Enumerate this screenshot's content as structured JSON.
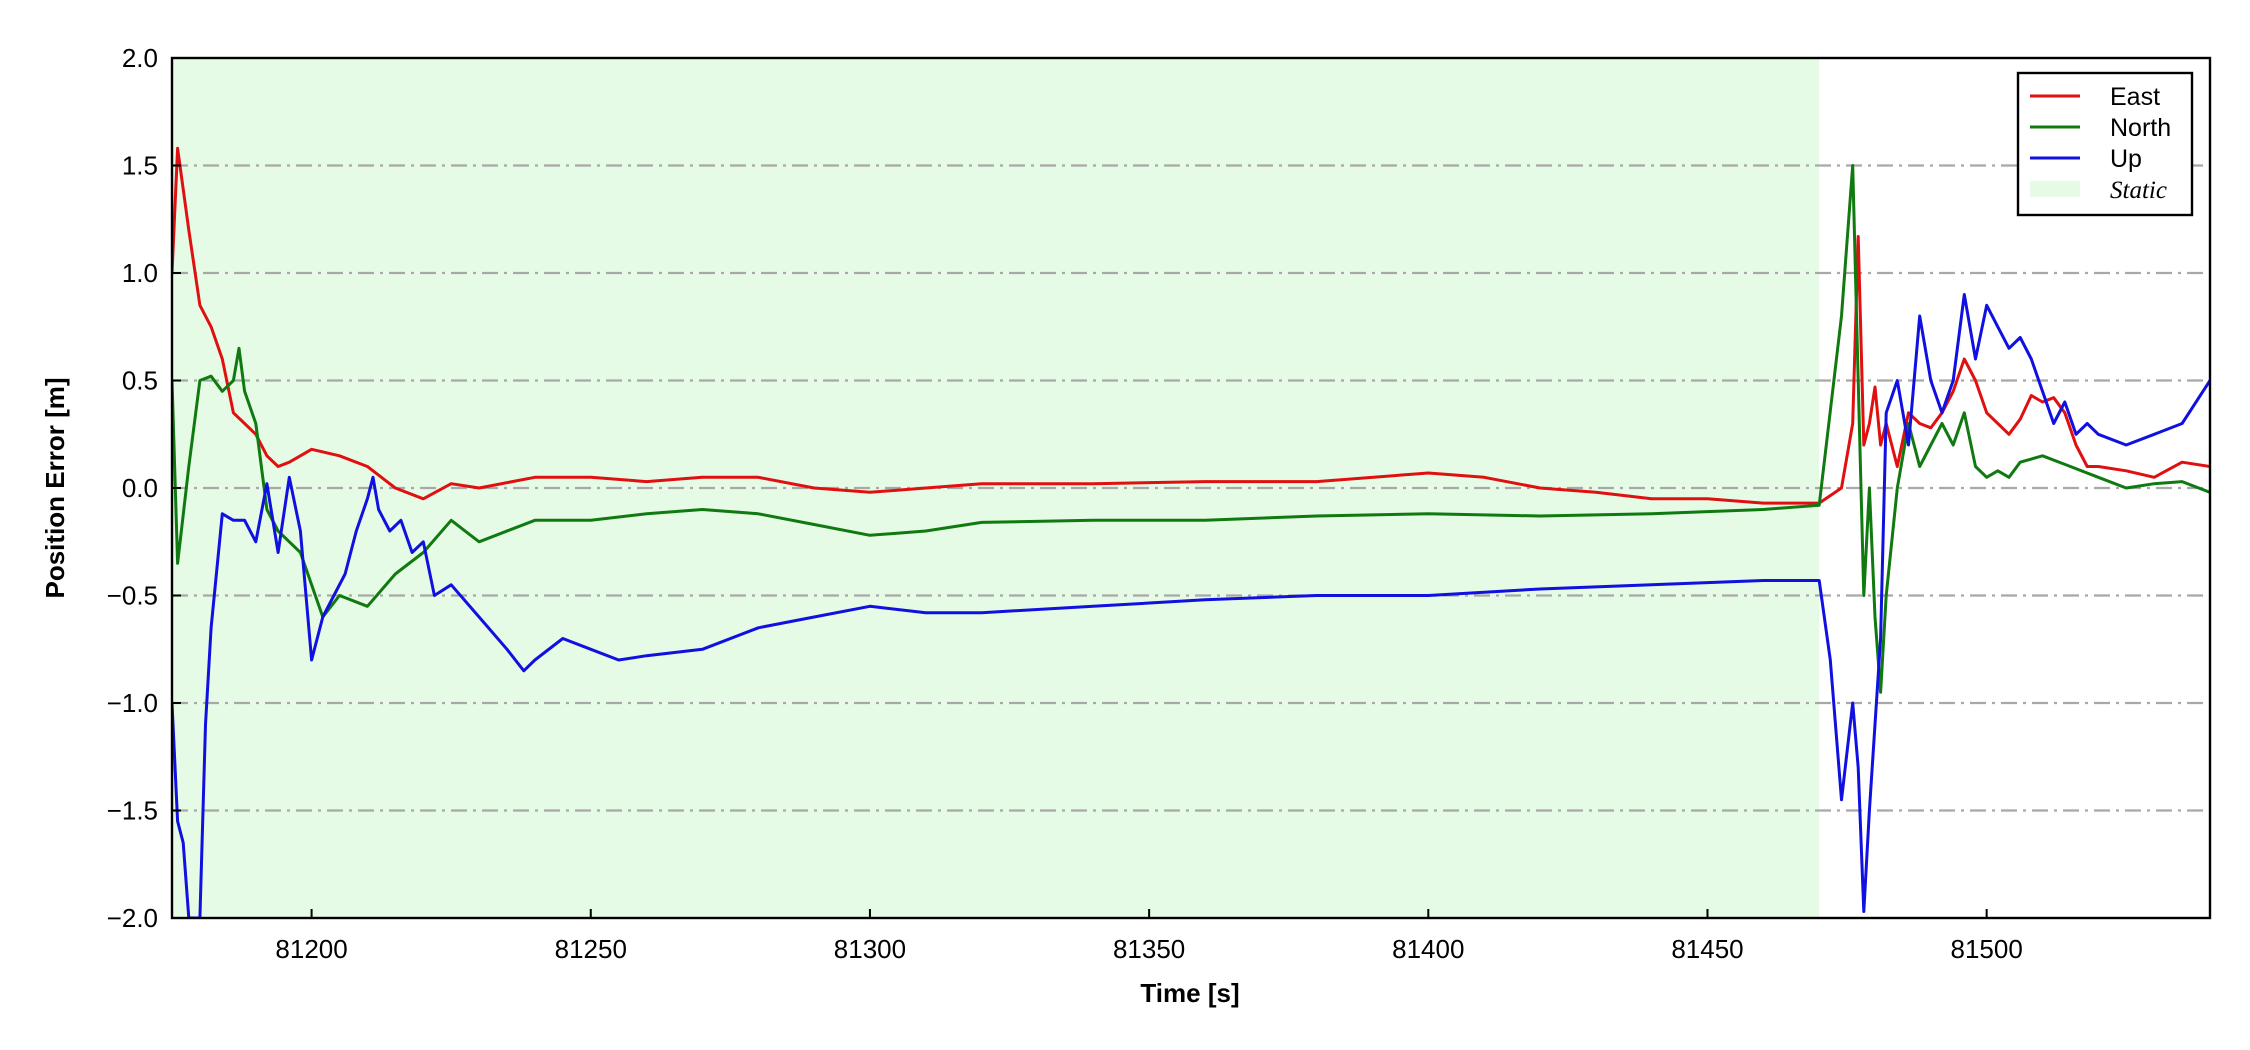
{
  "chart_data": {
    "type": "line",
    "title": "",
    "xlabel": "Time [s]",
    "ylabel": "Position Error [m]",
    "xlim": [
      81175,
      81540
    ],
    "ylim": [
      -2.0,
      2.0
    ],
    "xticks": [
      81200,
      81250,
      81300,
      81350,
      81400,
      81450,
      81500
    ],
    "xtick_labels": [
      "81200",
      "81250",
      "81300",
      "81350",
      "81400",
      "81450",
      "81500"
    ],
    "yticks": [
      -2.0,
      -1.5,
      -1.0,
      -0.5,
      0.0,
      0.5,
      1.0,
      1.5,
      2.0
    ],
    "ytick_labels": [
      "−2.0",
      "−1.5",
      "−1.0",
      "−0.5",
      "0.0",
      "0.5",
      "1.0",
      "1.5",
      "2.0"
    ],
    "grid": "horizontal dash-dot",
    "legend_position": "top-right",
    "shaded_region": {
      "label": "Static",
      "x_start": 81175,
      "x_end": 81470,
      "color": "#e6fbe6"
    },
    "series": [
      {
        "name": "East",
        "color": "#e01010",
        "x": [
          81175,
          81176,
          81178,
          81180,
          81182,
          81184,
          81186,
          81188,
          81190,
          81192,
          81194,
          81196,
          81198,
          81200,
          81205,
          81210,
          81215,
          81220,
          81225,
          81230,
          81240,
          81250,
          81260,
          81270,
          81280,
          81290,
          81300,
          81310,
          81320,
          81340,
          81360,
          81380,
          81400,
          81410,
          81420,
          81430,
          81440,
          81450,
          81460,
          81470,
          81474,
          81476,
          81477,
          81478,
          81479,
          81480,
          81481,
          81482,
          81484,
          81486,
          81488,
          81490,
          81492,
          81494,
          81496,
          81498,
          81500,
          81502,
          81504,
          81506,
          81508,
          81510,
          81512,
          81514,
          81516,
          81518,
          81520,
          81525,
          81530,
          81535,
          81540
        ],
        "values": [
          1.0,
          1.58,
          1.2,
          0.85,
          0.75,
          0.6,
          0.35,
          0.3,
          0.25,
          0.15,
          0.1,
          0.12,
          0.15,
          0.18,
          0.15,
          0.1,
          0.0,
          -0.05,
          0.02,
          0.0,
          0.05,
          0.05,
          0.03,
          0.05,
          0.05,
          0.0,
          -0.02,
          0.0,
          0.02,
          0.02,
          0.03,
          0.03,
          0.07,
          0.05,
          0.0,
          -0.02,
          -0.05,
          -0.05,
          -0.07,
          -0.07,
          0.0,
          0.3,
          1.17,
          0.2,
          0.3,
          0.47,
          0.2,
          0.3,
          0.1,
          0.35,
          0.3,
          0.28,
          0.35,
          0.45,
          0.6,
          0.5,
          0.35,
          0.3,
          0.25,
          0.32,
          0.43,
          0.4,
          0.42,
          0.35,
          0.2,
          0.1,
          0.1,
          0.08,
          0.05,
          0.12,
          0.1
        ]
      },
      {
        "name": "North",
        "color": "#107a10",
        "x": [
          81175,
          81176,
          81178,
          81180,
          81182,
          81184,
          81186,
          81187,
          81188,
          81190,
          81192,
          81194,
          81196,
          81198,
          81200,
          81202,
          81205,
          81210,
          81215,
          81220,
          81225,
          81230,
          81240,
          81250,
          81260,
          81270,
          81280,
          81290,
          81300,
          81310,
          81320,
          81340,
          81360,
          81380,
          81400,
          81420,
          81440,
          81460,
          81470,
          81474,
          81476,
          81477,
          81478,
          81479,
          81480,
          81481,
          81482,
          81484,
          81486,
          81488,
          81490,
          81492,
          81494,
          81496,
          81498,
          81500,
          81502,
          81504,
          81506,
          81510,
          81515,
          81520,
          81525,
          81530,
          81535,
          81540
        ],
        "values": [
          0.5,
          -0.35,
          0.1,
          0.5,
          0.52,
          0.45,
          0.5,
          0.65,
          0.45,
          0.3,
          -0.1,
          -0.2,
          -0.25,
          -0.3,
          -0.45,
          -0.6,
          -0.5,
          -0.55,
          -0.4,
          -0.3,
          -0.15,
          -0.25,
          -0.15,
          -0.15,
          -0.12,
          -0.1,
          -0.12,
          -0.17,
          -0.22,
          -0.2,
          -0.16,
          -0.15,
          -0.15,
          -0.13,
          -0.12,
          -0.13,
          -0.12,
          -0.1,
          -0.08,
          0.8,
          1.5,
          0.5,
          -0.5,
          0.0,
          -0.6,
          -0.95,
          -0.5,
          0.0,
          0.3,
          0.1,
          0.2,
          0.3,
          0.2,
          0.35,
          0.1,
          0.05,
          0.08,
          0.05,
          0.12,
          0.15,
          0.1,
          0.05,
          0.0,
          0.02,
          0.03,
          -0.02
        ]
      },
      {
        "name": "Up",
        "color": "#1010e0",
        "x": [
          81175,
          81176,
          81177,
          81178,
          81179,
          81180,
          81181,
          81182,
          81184,
          81186,
          81188,
          81190,
          81192,
          81194,
          81196,
          81198,
          81200,
          81202,
          81204,
          81206,
          81208,
          81210,
          81211,
          81212,
          81214,
          81216,
          81218,
          81220,
          81222,
          81225,
          81230,
          81235,
          81238,
          81240,
          81245,
          81250,
          81255,
          81260,
          81270,
          81280,
          81290,
          81300,
          81310,
          81320,
          81340,
          81360,
          81380,
          81400,
          81420,
          81440,
          81460,
          81470,
          81472,
          81474,
          81476,
          81477,
          81478,
          81479,
          81480,
          81481,
          81482,
          81484,
          81486,
          81488,
          81490,
          81492,
          81494,
          81496,
          81498,
          81500,
          81502,
          81504,
          81506,
          81508,
          81510,
          81512,
          81514,
          81516,
          81518,
          81520,
          81525,
          81530,
          81535,
          81540
        ],
        "values": [
          -1.0,
          -1.55,
          -1.65,
          -2.0,
          -2.0,
          -2.0,
          -1.1,
          -0.65,
          -0.12,
          -0.15,
          -0.15,
          -0.25,
          0.02,
          -0.3,
          0.05,
          -0.2,
          -0.8,
          -0.6,
          -0.5,
          -0.4,
          -0.2,
          -0.05,
          0.05,
          -0.1,
          -0.2,
          -0.15,
          -0.3,
          -0.25,
          -0.5,
          -0.45,
          -0.6,
          -0.75,
          -0.85,
          -0.8,
          -0.7,
          -0.75,
          -0.8,
          -0.78,
          -0.75,
          -0.65,
          -0.6,
          -0.55,
          -0.58,
          -0.58,
          -0.55,
          -0.52,
          -0.5,
          -0.5,
          -0.47,
          -0.45,
          -0.43,
          -0.43,
          -0.8,
          -1.45,
          -1.0,
          -1.3,
          -1.97,
          -1.5,
          -1.1,
          -0.7,
          0.35,
          0.5,
          0.2,
          0.8,
          0.5,
          0.35,
          0.5,
          0.9,
          0.6,
          0.85,
          0.75,
          0.65,
          0.7,
          0.6,
          0.45,
          0.3,
          0.4,
          0.25,
          0.3,
          0.25,
          0.2,
          0.25,
          0.3,
          0.5
        ]
      }
    ],
    "legend": [
      {
        "label": "East",
        "kind": "line",
        "color": "#e01010"
      },
      {
        "label": "North",
        "kind": "line",
        "color": "#107a10"
      },
      {
        "label": "Up",
        "kind": "line",
        "color": "#1010e0"
      },
      {
        "label": "Static",
        "kind": "patch",
        "color": "#e6fbe6"
      }
    ]
  }
}
